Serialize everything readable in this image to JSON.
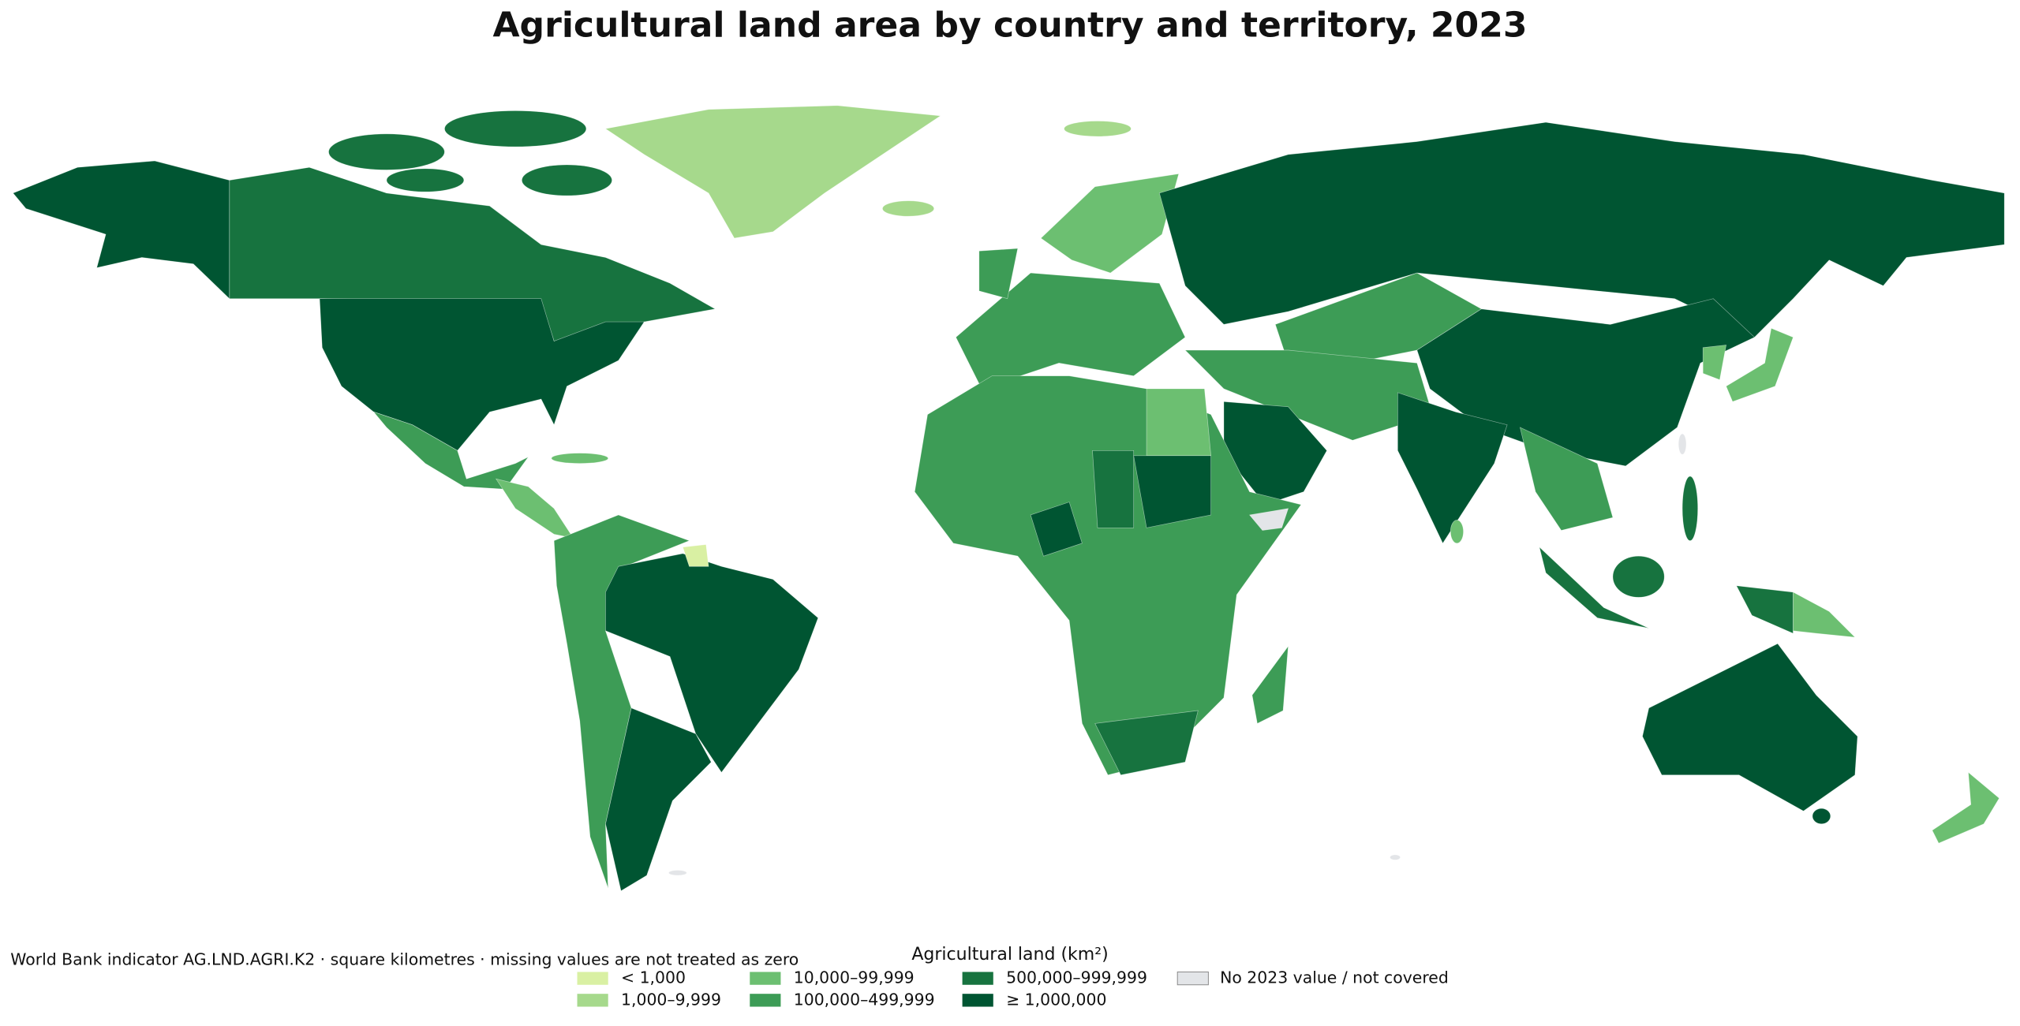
{
  "title": "Agricultural land area by country and territory, 2023",
  "note": "World Bank indicator AG.LND.AGRI.K2 · square kilometres · missing values are not treated as zero",
  "legend": {
    "title": "Agricultural land (km²)",
    "classes": [
      {
        "label": "< 1,000",
        "color": "#d9f0a3"
      },
      {
        "label": "1,000–9,999",
        "color": "#a6d98c"
      },
      {
        "label": "10,000–99,999",
        "color": "#6cbf71"
      },
      {
        "label": "100,000–499,999",
        "color": "#3d9c56"
      },
      {
        "label": "500,000–999,999",
        "color": "#17733f"
      },
      {
        "label": "≥ 1,000,000",
        "color": "#005532"
      }
    ],
    "missing": {
      "label": "No 2023 value / not covered",
      "color": "#e3e5e8"
    }
  }
}
